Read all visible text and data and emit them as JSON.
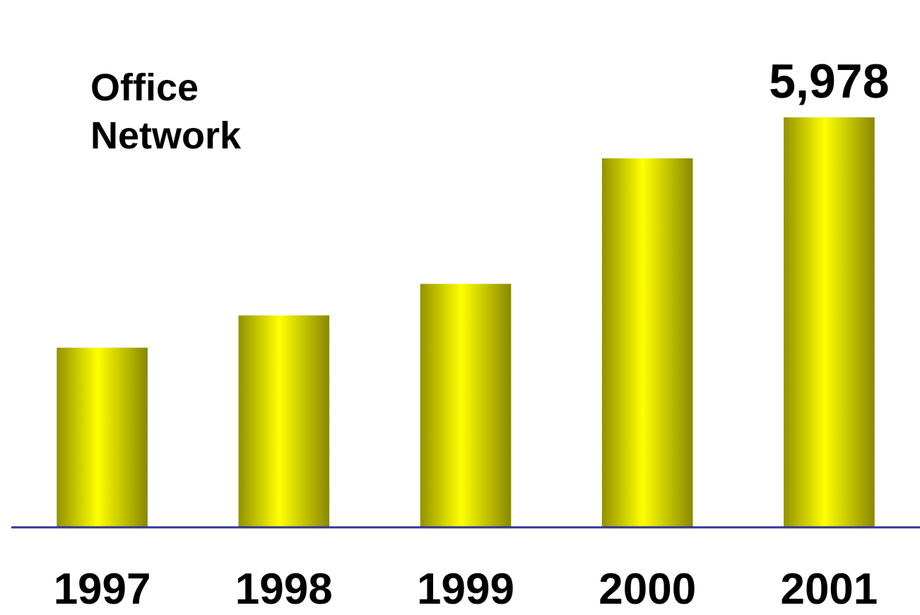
{
  "chart_data": {
    "type": "bar",
    "title": "Office Network",
    "categories": [
      "1997",
      "1998",
      "1999",
      "2000",
      "2001"
    ],
    "values": [
      2620,
      3090,
      3550,
      5380,
      5978
    ],
    "value_labels": [
      null,
      null,
      null,
      null,
      "5,978"
    ],
    "color": "#e0e000"
  }
}
